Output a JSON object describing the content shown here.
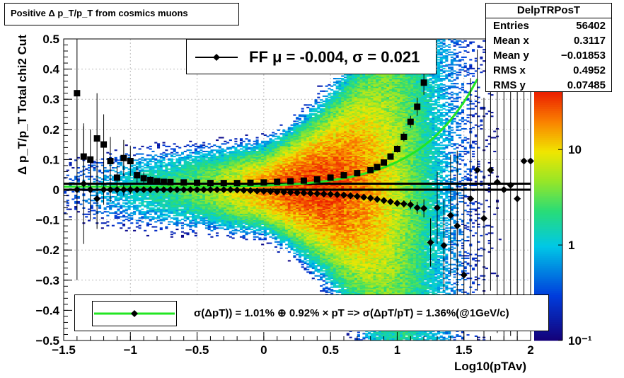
{
  "title_box": {
    "text": "Positive Δ p_T/p_T from cosmics muons"
  },
  "stats": {
    "name": "DelpTRPosT",
    "rows": [
      {
        "label": "Entries",
        "value": "56402"
      },
      {
        "label": "Mean x",
        "value": "0.3117"
      },
      {
        "label": "Mean y",
        "value": "−0.01853"
      },
      {
        "label": "RMS x",
        "value": "0.4952"
      },
      {
        "label": "RMS y",
        "value": "0.07485"
      }
    ]
  },
  "fit_legend": {
    "text": "FF μ = -0.004, σ =   0.021"
  },
  "resolution_legend": {
    "text": "σ(ΔpT)) =  1.01% ⊕  0.92% × pT => σ(ΔpT/pT) =  1.36%(@1GeV/c)"
  },
  "colors": {
    "fit_curve": "#22e622",
    "markers": "#000000",
    "mean_line": "#000000"
  },
  "chart_data": {
    "type": "heatmap",
    "title": "Positive Δ p_T/p_T from cosmics muons",
    "xlabel": "Log10(pTAv)",
    "ylabel": "Δ p_T/p_T   Total chi2 Cut",
    "xlim": [
      -1.5,
      2.0
    ],
    "ylim": [
      -0.5,
      0.5
    ],
    "x_ticks": [
      -1.5,
      -1,
      -0.5,
      0,
      0.5,
      1,
      1.5,
      2
    ],
    "x_tick_labels": [
      "−1.5",
      "−1",
      "−0.5",
      "0",
      "0.5",
      "1",
      "1.5",
      "2"
    ],
    "y_ticks": [
      -0.5,
      -0.4,
      -0.3,
      -0.2,
      -0.1,
      0,
      0.1,
      0.2,
      0.3,
      0.4,
      0.5
    ],
    "y_tick_labels": [
      "−0.5",
      "−0.4",
      "−0.3",
      "−0.2",
      "−0.1",
      "0",
      "0.1",
      "0.2",
      "0.3",
      "0.4",
      "0.5"
    ],
    "grid": true,
    "log_z": true,
    "z_ticks": [
      0.1,
      1,
      10
    ],
    "z_tick_labels": [
      "10⁻¹",
      "1",
      "10"
    ],
    "zlim": [
      0.1,
      40
    ],
    "density_model": {
      "mean": 0.005,
      "sigma_min": 0.03,
      "sigma_slope": 0.045,
      "peak_x": 0.4,
      "peak_width": 0.45
    },
    "series": [
      {
        "name": "sigma",
        "marker": "square",
        "x": [
          -1.4,
          -1.35,
          -1.3,
          -1.25,
          -1.2,
          -1.15,
          -1.1,
          -1.05,
          -1.0,
          -0.95,
          -0.9,
          -0.85,
          -0.8,
          -0.75,
          -0.7,
          -0.6,
          -0.5,
          -0.4,
          -0.3,
          -0.2,
          -0.1,
          0.0,
          0.1,
          0.2,
          0.3,
          0.4,
          0.5,
          0.6,
          0.7,
          0.8,
          0.85,
          0.9,
          0.95,
          1.0,
          1.05,
          1.1,
          1.15,
          1.2
        ],
        "y": [
          0.32,
          0.11,
          0.1,
          0.17,
          0.15,
          0.095,
          0.04,
          0.105,
          0.095,
          0.048,
          0.038,
          0.032,
          0.028,
          0.026,
          0.025,
          0.024,
          0.023,
          0.022,
          0.022,
          0.022,
          0.023,
          0.024,
          0.026,
          0.028,
          0.03,
          0.034,
          0.04,
          0.048,
          0.055,
          0.065,
          0.075,
          0.09,
          0.11,
          0.135,
          0.175,
          0.225,
          0.275,
          0.355
        ],
        "yerr": [
          0.25,
          0.1,
          0.1,
          0.15,
          0.1,
          0.08,
          0.04,
          0.06,
          0.05,
          0.03,
          0.02,
          0.012,
          0.008,
          0.005,
          0.004,
          0.003,
          0.002,
          0.002,
          0.002,
          0.002,
          0.002,
          0.002,
          0.002,
          0.002,
          0.002,
          0.003,
          0.003,
          0.003,
          0.004,
          0.005,
          0.006,
          0.008,
          0.01,
          0.012,
          0.015,
          0.02,
          0.03,
          0.04
        ]
      },
      {
        "name": "mean",
        "marker": "diamond",
        "x": [
          -1.4,
          -1.35,
          -1.3,
          -1.25,
          -1.2,
          -1.15,
          -1.1,
          -1.05,
          -1.0,
          -0.95,
          -0.9,
          -0.85,
          -0.8,
          -0.75,
          -0.7,
          -0.65,
          -0.6,
          -0.55,
          -0.5,
          -0.45,
          -0.4,
          -0.35,
          -0.3,
          -0.25,
          -0.2,
          -0.15,
          -0.1,
          -0.05,
          0.0,
          0.05,
          0.1,
          0.15,
          0.2,
          0.25,
          0.3,
          0.35,
          0.4,
          0.45,
          0.5,
          0.55,
          0.6,
          0.65,
          0.7,
          0.75,
          0.8,
          0.85,
          0.9,
          0.95,
          1.0,
          1.05,
          1.1,
          1.15,
          1.2,
          1.25,
          1.3,
          1.35,
          1.4,
          1.45,
          1.5,
          1.55,
          1.6,
          1.65,
          1.7,
          1.75,
          1.8,
          1.85,
          1.9,
          1.95,
          2.0
        ],
        "y": [
          0.0,
          0.02,
          0.0,
          -0.03,
          0.0,
          0.0,
          0.0,
          0.0,
          0.0,
          0.0,
          0.0,
          0.0,
          0.0,
          0.0,
          0.0,
          0.0,
          0.0,
          0.0,
          0.0,
          0.0,
          0.0,
          0.0,
          0.0,
          0.0,
          -0.001,
          -0.002,
          -0.003,
          -0.004,
          -0.005,
          -0.006,
          -0.007,
          -0.008,
          -0.009,
          -0.01,
          -0.011,
          -0.012,
          -0.013,
          -0.014,
          -0.015,
          -0.016,
          -0.018,
          -0.02,
          -0.022,
          -0.025,
          -0.028,
          -0.032,
          -0.036,
          -0.04,
          -0.045,
          -0.047,
          -0.05,
          -0.06,
          -0.062,
          -0.175,
          -0.06,
          -0.185,
          -0.085,
          -0.12,
          -0.283,
          -0.03,
          0.065,
          -0.095,
          0.065,
          0.025,
          0.0,
          0.015,
          -0.03,
          0.095,
          0.095
        ],
        "yerr": [
          0.3,
          0.2,
          0.1,
          0.1,
          0.05,
          0.04,
          0.02,
          0.02,
          0.015,
          0.01,
          0.008,
          0.006,
          0.004,
          0.003,
          0.002,
          0.002,
          0.002,
          0.001,
          0.001,
          0.001,
          0.001,
          0.001,
          0.001,
          0.001,
          0.001,
          0.001,
          0.001,
          0.001,
          0.001,
          0.001,
          0.001,
          0.001,
          0.001,
          0.001,
          0.001,
          0.001,
          0.001,
          0.001,
          0.002,
          0.002,
          0.002,
          0.002,
          0.003,
          0.003,
          0.004,
          0.005,
          0.006,
          0.008,
          0.01,
          0.012,
          0.015,
          0.02,
          0.03,
          0.08,
          0.12,
          0.15,
          0.2,
          0.25,
          0.3,
          0.4,
          0.4,
          0.4,
          0.4,
          0.5,
          0.5,
          0.5,
          0.5,
          0.5,
          0.5
        ]
      }
    ],
    "fit_curve": {
      "name": "sigma(ΔpT/pT)",
      "a": 0.0101,
      "b": 0.0092,
      "x_from": -1.5,
      "x_to": 1.61
    },
    "mean_line_y": 0.0,
    "fit_mean_line_y": 0.02
  }
}
